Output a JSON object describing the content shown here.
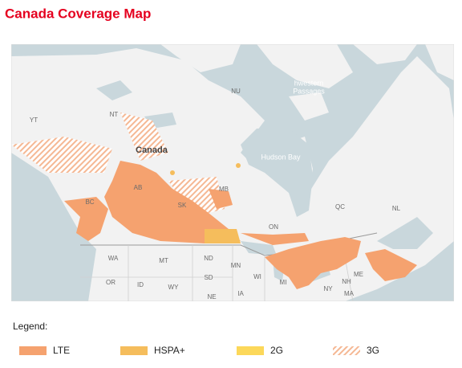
{
  "header": {
    "title": "Canada Coverage Map"
  },
  "map": {
    "labels": [
      "YT",
      "NT",
      "NU",
      "Canada",
      "hwestern",
      "Passages",
      "Hudson Bay",
      "BC",
      "AB",
      "SK",
      "MB",
      "ON",
      "QC",
      "NL",
      "WA",
      "MT",
      "ND",
      "MN",
      "OR",
      "ID",
      "SD",
      "WY",
      "NE",
      "IA",
      "WI",
      "MI",
      "NY",
      "NH",
      "ME",
      "MA"
    ]
  },
  "legend": {
    "title": "Legend:",
    "items": [
      {
        "label": "LTE",
        "color": "#f5a26f"
      },
      {
        "label": "HSPA+",
        "color": "#f5bd5c"
      },
      {
        "label": "2G",
        "color": "#fcd85a"
      },
      {
        "label": "3G",
        "color": "#f5b894",
        "hatched": true
      }
    ]
  }
}
